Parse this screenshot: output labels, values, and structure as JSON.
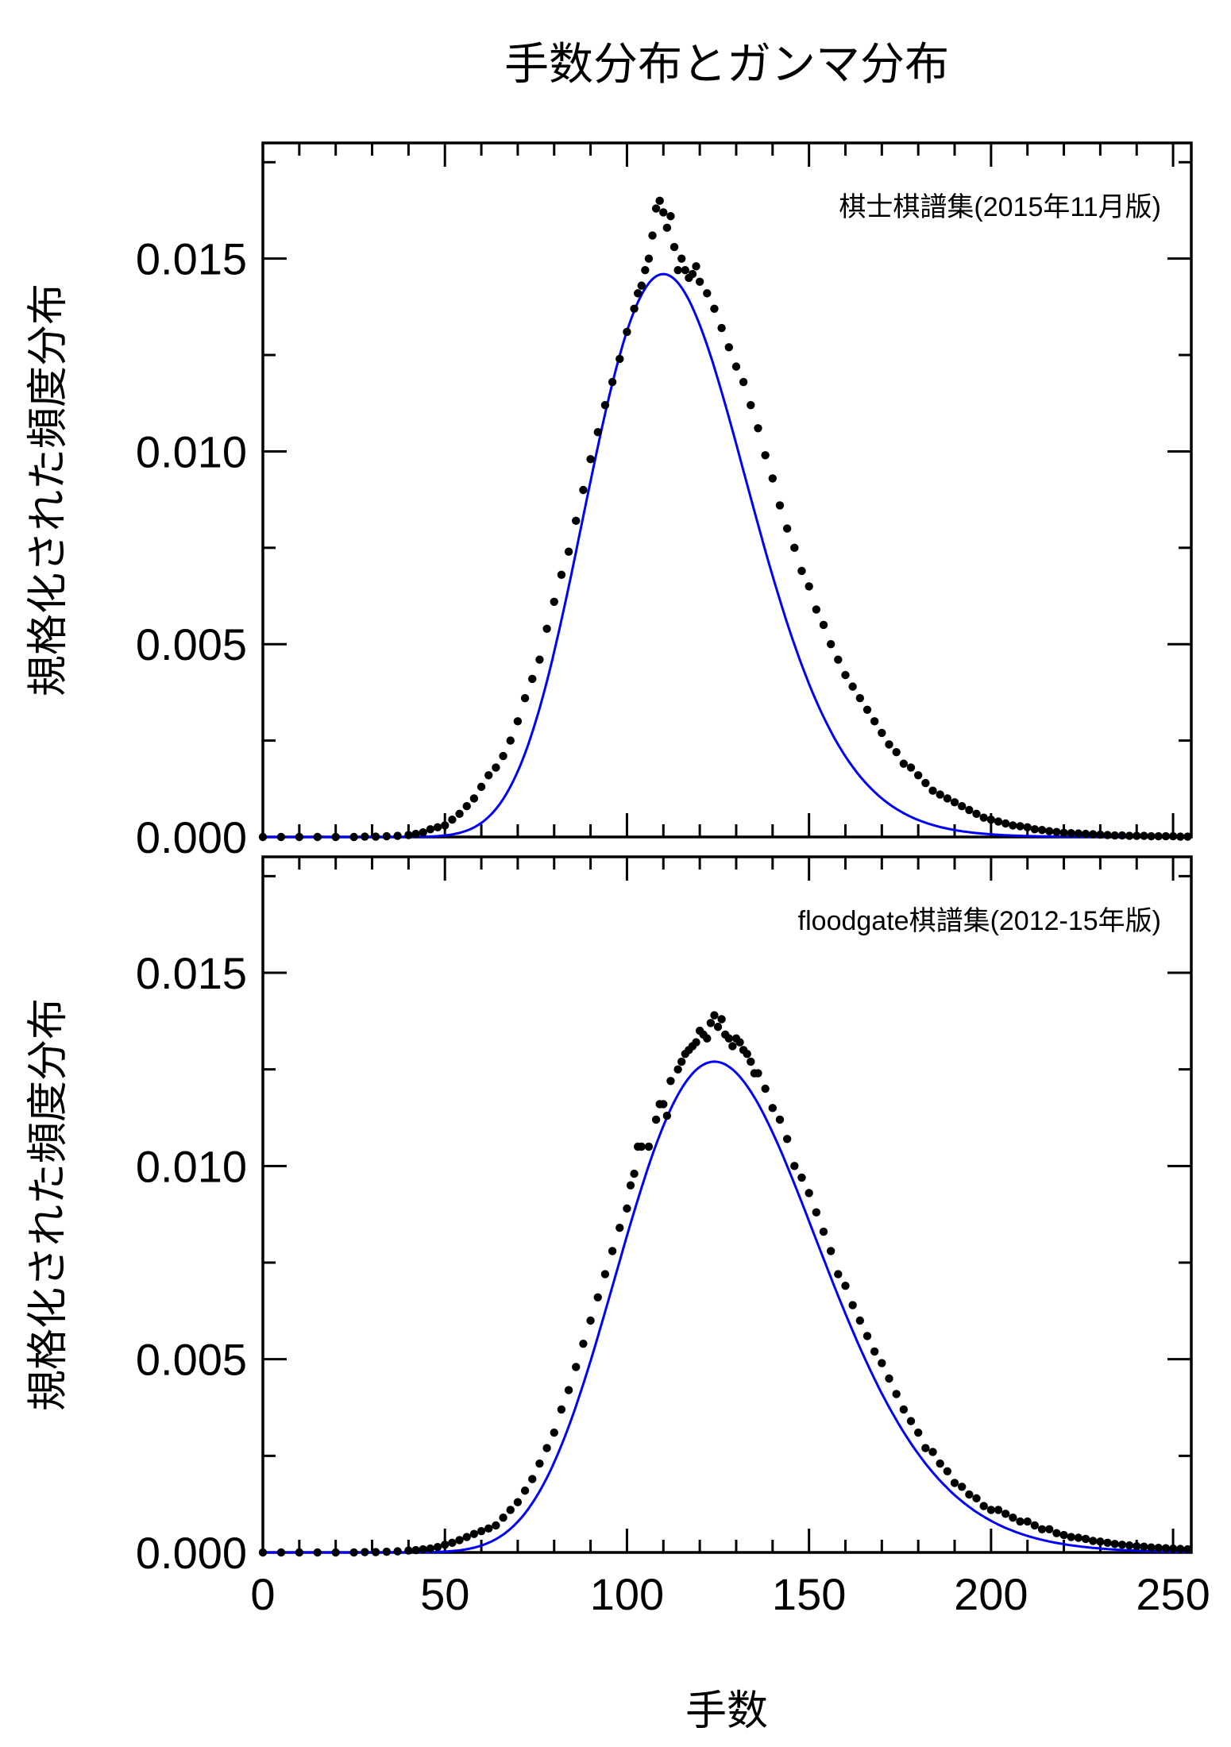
{
  "chart_data": {
    "type": "scatter",
    "title": "手数分布とガンマ分布",
    "xlabel": "手数",
    "ylabel": "規格化された頻度分布",
    "xlim": [
      0,
      255
    ],
    "ylim": [
      0,
      0.018
    ],
    "x_ticks": [
      0,
      50,
      100,
      150,
      200,
      250
    ],
    "x_tick_labels": [
      "0",
      "50",
      "100",
      "150",
      "200",
      "250"
    ],
    "y_ticks": [
      0,
      0.005,
      0.01,
      0.015
    ],
    "y_tick_labels": [
      "0.000",
      "0.005",
      "0.010",
      "0.015"
    ],
    "colors": {
      "points": "#000000",
      "fit_line": "#0000ff"
    },
    "panels": [
      {
        "label": "棋士棋譜集(2015年11月版)",
        "legend_position": "top-right",
        "fit": {
          "type": "gamma",
          "mode": 110,
          "peak": 0.0146,
          "width": 22.3
        },
        "points": [
          [
            0,
            0
          ],
          [
            5,
            0
          ],
          [
            10,
            0
          ],
          [
            15,
            0
          ],
          [
            20,
            0
          ],
          [
            25,
            0
          ],
          [
            28,
            1e-05
          ],
          [
            31,
            1e-05
          ],
          [
            34,
            2e-05
          ],
          [
            37,
            3e-05
          ],
          [
            40,
            5e-05
          ],
          [
            42,
            8e-05
          ],
          [
            44,
            0.00012
          ],
          [
            46,
            0.0002
          ],
          [
            48,
            0.00025
          ],
          [
            50,
            0.0003
          ],
          [
            52,
            0.00045
          ],
          [
            54,
            0.0006
          ],
          [
            56,
            0.0008
          ],
          [
            58,
            0.001
          ],
          [
            60,
            0.0013
          ],
          [
            62,
            0.0016
          ],
          [
            64,
            0.0018
          ],
          [
            66,
            0.0021
          ],
          [
            68,
            0.0025
          ],
          [
            70,
            0.003
          ],
          [
            72,
            0.0036
          ],
          [
            74,
            0.0041
          ],
          [
            76,
            0.0046
          ],
          [
            78,
            0.0054
          ],
          [
            80,
            0.0061
          ],
          [
            82,
            0.0068
          ],
          [
            84,
            0.0074
          ],
          [
            86,
            0.0082
          ],
          [
            88,
            0.009
          ],
          [
            90,
            0.0098
          ],
          [
            92,
            0.0105
          ],
          [
            94,
            0.0112
          ],
          [
            96,
            0.0118
          ],
          [
            98,
            0.0124
          ],
          [
            100,
            0.0131
          ],
          [
            102,
            0.0137
          ],
          [
            103,
            0.0141
          ],
          [
            104,
            0.0143
          ],
          [
            105,
            0.0147
          ],
          [
            106,
            0.015
          ],
          [
            107,
            0.0156
          ],
          [
            108,
            0.0163
          ],
          [
            109,
            0.0165
          ],
          [
            110,
            0.0162
          ],
          [
            111,
            0.0158
          ],
          [
            112,
            0.0161
          ],
          [
            113,
            0.0153
          ],
          [
            114,
            0.0147
          ],
          [
            115,
            0.015
          ],
          [
            116,
            0.0147
          ],
          [
            117,
            0.0145
          ],
          [
            118,
            0.0146
          ],
          [
            119,
            0.0148
          ],
          [
            120,
            0.0144
          ],
          [
            122,
            0.0141
          ],
          [
            124,
            0.0137
          ],
          [
            126,
            0.0132
          ],
          [
            128,
            0.0127
          ],
          [
            130,
            0.0122
          ],
          [
            132,
            0.0118
          ],
          [
            134,
            0.0112
          ],
          [
            136,
            0.0106
          ],
          [
            138,
            0.0099
          ],
          [
            140,
            0.0093
          ],
          [
            142,
            0.0086
          ],
          [
            144,
            0.008
          ],
          [
            146,
            0.0075
          ],
          [
            148,
            0.0069
          ],
          [
            150,
            0.0065
          ],
          [
            152,
            0.0059
          ],
          [
            154,
            0.0055
          ],
          [
            156,
            0.005
          ],
          [
            158,
            0.0046
          ],
          [
            160,
            0.0042
          ],
          [
            162,
            0.0039
          ],
          [
            164,
            0.0036
          ],
          [
            166,
            0.0033
          ],
          [
            168,
            0.003
          ],
          [
            170,
            0.0027
          ],
          [
            172,
            0.0024
          ],
          [
            174,
            0.0022
          ],
          [
            176,
            0.0019
          ],
          [
            178,
            0.0018
          ],
          [
            180,
            0.0016
          ],
          [
            182,
            0.0014
          ],
          [
            184,
            0.0012
          ],
          [
            186,
            0.0011
          ],
          [
            188,
            0.001
          ],
          [
            190,
            0.0009
          ],
          [
            192,
            0.0008
          ],
          [
            194,
            0.0007
          ],
          [
            196,
            0.0006
          ],
          [
            198,
            0.0005
          ],
          [
            200,
            0.00045
          ],
          [
            202,
            0.0004
          ],
          [
            204,
            0.00035
          ],
          [
            206,
            0.0003
          ],
          [
            208,
            0.00028
          ],
          [
            210,
            0.00025
          ],
          [
            212,
            0.0002
          ],
          [
            214,
            0.00018
          ],
          [
            216,
            0.00015
          ],
          [
            218,
            0.00013
          ],
          [
            220,
            0.00011
          ],
          [
            222,
            0.0001
          ],
          [
            224,
            9e-05
          ],
          [
            226,
            8e-05
          ],
          [
            228,
            7e-05
          ],
          [
            230,
            6e-05
          ],
          [
            232,
            5e-05
          ],
          [
            234,
            4e-05
          ],
          [
            236,
            4e-05
          ],
          [
            238,
            3e-05
          ],
          [
            240,
            3e-05
          ],
          [
            242,
            3e-05
          ],
          [
            244,
            2e-05
          ],
          [
            246,
            2e-05
          ],
          [
            248,
            2e-05
          ],
          [
            250,
            2e-05
          ],
          [
            252,
            1e-05
          ],
          [
            254,
            1e-05
          ]
        ]
      },
      {
        "label": "floodgate棋譜集(2012-15年版)",
        "legend_position": "top-right",
        "fit": {
          "type": "gamma",
          "mode": 124,
          "peak": 0.0127,
          "width": 27.5
        },
        "points": [
          [
            0,
            0
          ],
          [
            5,
            0
          ],
          [
            10,
            0
          ],
          [
            15,
            0
          ],
          [
            20,
            0
          ],
          [
            25,
            0
          ],
          [
            28,
            1e-05
          ],
          [
            31,
            1e-05
          ],
          [
            34,
            2e-05
          ],
          [
            37,
            3e-05
          ],
          [
            40,
            5e-05
          ],
          [
            42,
            6e-05
          ],
          [
            44,
            8e-05
          ],
          [
            46,
            0.0001
          ],
          [
            48,
            0.00014
          ],
          [
            50,
            0.0002
          ],
          [
            52,
            0.00025
          ],
          [
            54,
            0.00032
          ],
          [
            56,
            0.0004
          ],
          [
            58,
            0.00048
          ],
          [
            60,
            0.00055
          ],
          [
            62,
            0.00062
          ],
          [
            64,
            0.0007
          ],
          [
            66,
            0.0009
          ],
          [
            68,
            0.0011
          ],
          [
            70,
            0.0013
          ],
          [
            72,
            0.0016
          ],
          [
            74,
            0.0019
          ],
          [
            76,
            0.0023
          ],
          [
            78,
            0.0027
          ],
          [
            80,
            0.0031
          ],
          [
            82,
            0.0037
          ],
          [
            84,
            0.0042
          ],
          [
            86,
            0.0048
          ],
          [
            88,
            0.0054
          ],
          [
            90,
            0.006
          ],
          [
            92,
            0.0066
          ],
          [
            94,
            0.0072
          ],
          [
            96,
            0.0078
          ],
          [
            98,
            0.0084
          ],
          [
            100,
            0.0089
          ],
          [
            101,
            0.0095
          ],
          [
            102,
            0.0098
          ],
          [
            103,
            0.0105
          ],
          [
            104,
            0.0105
          ],
          [
            106,
            0.0105
          ],
          [
            108,
            0.0112
          ],
          [
            109,
            0.0116
          ],
          [
            110,
            0.0116
          ],
          [
            111,
            0.0113
          ],
          [
            112,
            0.0122
          ],
          [
            114,
            0.0125
          ],
          [
            115,
            0.0127
          ],
          [
            116,
            0.0129
          ],
          [
            117,
            0.013
          ],
          [
            118,
            0.0131
          ],
          [
            119,
            0.0132
          ],
          [
            120,
            0.0135
          ],
          [
            121,
            0.0134
          ],
          [
            122,
            0.0133
          ],
          [
            123,
            0.0137
          ],
          [
            124,
            0.0139
          ],
          [
            125,
            0.0136
          ],
          [
            126,
            0.0138
          ],
          [
            127,
            0.0134
          ],
          [
            128,
            0.0133
          ],
          [
            129,
            0.0131
          ],
          [
            130,
            0.0133
          ],
          [
            131,
            0.0132
          ],
          [
            132,
            0.013
          ],
          [
            133,
            0.0129
          ],
          [
            134,
            0.0127
          ],
          [
            135,
            0.0124
          ],
          [
            136,
            0.0124
          ],
          [
            138,
            0.012
          ],
          [
            140,
            0.0115
          ],
          [
            142,
            0.0112
          ],
          [
            144,
            0.0107
          ],
          [
            146,
            0.01
          ],
          [
            148,
            0.0097
          ],
          [
            150,
            0.0093
          ],
          [
            152,
            0.0088
          ],
          [
            154,
            0.0083
          ],
          [
            156,
            0.0078
          ],
          [
            158,
            0.0072
          ],
          [
            160,
            0.0069
          ],
          [
            162,
            0.0064
          ],
          [
            164,
            0.006
          ],
          [
            166,
            0.0056
          ],
          [
            168,
            0.0052
          ],
          [
            170,
            0.0049
          ],
          [
            172,
            0.0045
          ],
          [
            174,
            0.0041
          ],
          [
            176,
            0.0037
          ],
          [
            178,
            0.0034
          ],
          [
            180,
            0.0031
          ],
          [
            182,
            0.0027
          ],
          [
            184,
            0.0026
          ],
          [
            186,
            0.0023
          ],
          [
            188,
            0.0021
          ],
          [
            190,
            0.0018
          ],
          [
            192,
            0.0017
          ],
          [
            194,
            0.0015
          ],
          [
            196,
            0.0014
          ],
          [
            198,
            0.0012
          ],
          [
            200,
            0.0011
          ],
          [
            202,
            0.0011
          ],
          [
            204,
            0.001
          ],
          [
            206,
            0.0009
          ],
          [
            208,
            0.0008
          ],
          [
            210,
            0.0008
          ],
          [
            212,
            0.0007
          ],
          [
            214,
            0.0006
          ],
          [
            216,
            0.0006
          ],
          [
            218,
            0.0005
          ],
          [
            220,
            0.00045
          ],
          [
            222,
            0.0004
          ],
          [
            224,
            0.00038
          ],
          [
            226,
            0.00035
          ],
          [
            228,
            0.0003
          ],
          [
            230,
            0.00028
          ],
          [
            232,
            0.00025
          ],
          [
            234,
            0.00022
          ],
          [
            236,
            0.0002
          ],
          [
            238,
            0.00018
          ],
          [
            240,
            0.00016
          ],
          [
            242,
            0.00015
          ],
          [
            244,
            0.00013
          ],
          [
            246,
            0.00012
          ],
          [
            248,
            0.00011
          ],
          [
            250,
            0.0001
          ],
          [
            252,
            9e-05
          ],
          [
            254,
            8e-05
          ]
        ]
      }
    ]
  }
}
